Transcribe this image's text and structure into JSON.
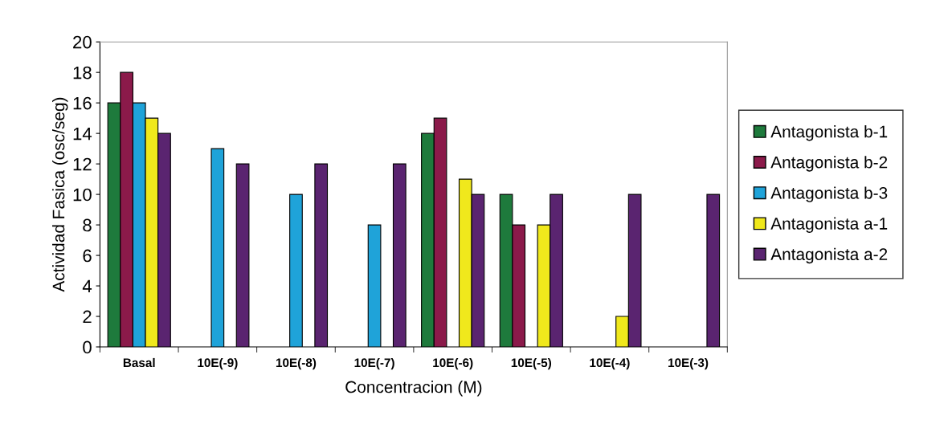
{
  "chart_data": {
    "type": "bar",
    "xlabel": "Concentracion (M)",
    "ylabel": "Actividad Fasica (osc/seg)",
    "categories": [
      "Basal",
      "10E(-9)",
      "10E(-8)",
      "10E(-7)",
      "10E(-6)",
      "10E(-5)",
      "10E(-4)",
      "10E(-3)"
    ],
    "series": [
      {
        "name": "Antagonista b-1",
        "color": "#1e7a3c",
        "values": [
          16,
          null,
          null,
          null,
          14,
          10,
          null,
          null
        ]
      },
      {
        "name": "Antagonista b-2",
        "color": "#8b1a4a",
        "values": [
          18,
          null,
          null,
          null,
          15,
          8,
          null,
          null
        ]
      },
      {
        "name": "Antagonista b-3",
        "color": "#1fa3d9",
        "values": [
          16,
          13,
          10,
          8,
          null,
          null,
          null,
          null
        ]
      },
      {
        "name": "Antagonista a-1",
        "color": "#f0e81c",
        "values": [
          15,
          null,
          null,
          null,
          11,
          8,
          2,
          null
        ]
      },
      {
        "name": "Antagonista a-2",
        "color": "#5a2470",
        "values": [
          14,
          12,
          12,
          12,
          10,
          10,
          10,
          10
        ]
      }
    ],
    "ylim": [
      0,
      20
    ],
    "yticks": [
      0,
      2,
      4,
      6,
      8,
      10,
      12,
      14,
      16,
      18,
      20
    ],
    "grid": false,
    "legend": "right"
  }
}
